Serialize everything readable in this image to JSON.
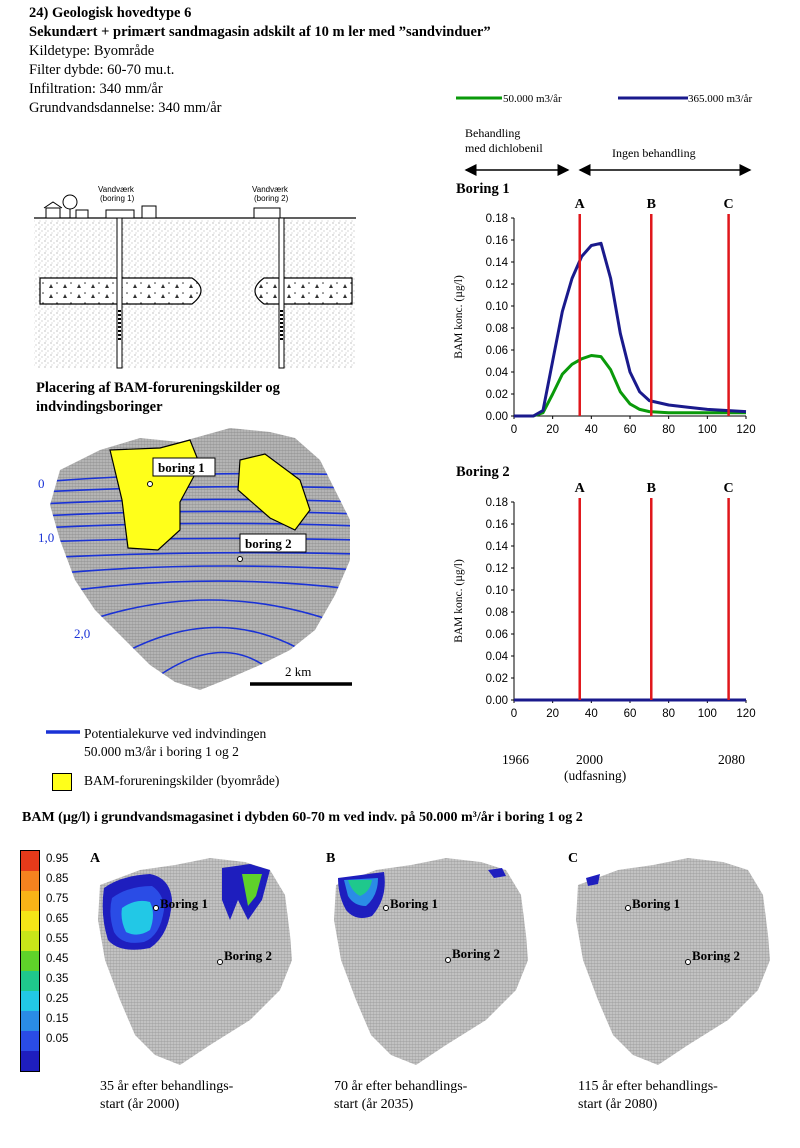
{
  "header": {
    "title": "24) Geologisk hovedtype 6",
    "subtitle": "Sekundært + primært sandmagasin adskilt af 10 m ler med ”sandvinduer”",
    "lines": [
      "Kildetype: Byområde",
      "Filter dybde: 60-70 mu.t.",
      "Infiltration: 340 mm/år",
      "Grundvandsdannelse: 340 mm/år"
    ]
  },
  "legend_top": {
    "series1": "50.000 m3/år",
    "series2": "365.000 m3/år",
    "color1": "#0a9a0a",
    "color2": "#1a1a8c"
  },
  "phases": {
    "treatment": "Behandling med dichlobenil",
    "treatment_line1": "Behandling",
    "treatment_line2": "med dichlobenil",
    "no_treatment": "Ingen behandling"
  },
  "cross_section": {
    "waterworks1_l1": "Vandværk",
    "waterworks1_l2": "(boring 1)",
    "waterworks2_l1": "Vandværk",
    "waterworks2_l2": "(boring 2)"
  },
  "map": {
    "title_l1": "Placering af BAM-forureningskilder og",
    "title_l2": "indvindingsboringer",
    "contour_labels": [
      "0",
      "1,0",
      "2,0"
    ],
    "boring1": "boring 1",
    "boring2": "boring 2",
    "scale": "2 km",
    "legend_line_l1": "Potentialekurve ved indvindingen",
    "legend_line_l2": "50.000 m3/år i boring 1 og 2",
    "legend_box": "BAM-forureningskilder (byområde)"
  },
  "chart_data": [
    {
      "type": "line",
      "title": "Boring 1",
      "xlabel": "",
      "ylabel": "BAM konc. (µg/l)",
      "xlim": [
        0,
        120
      ],
      "ylim": [
        0,
        0.18
      ],
      "xticks": [
        0,
        20,
        40,
        60,
        80,
        100,
        120
      ],
      "yticks": [
        0.0,
        0.02,
        0.04,
        0.06,
        0.08,
        0.1,
        0.12,
        0.14,
        0.16,
        0.18
      ],
      "vlines": [
        {
          "label": "A",
          "x": 34
        },
        {
          "label": "B",
          "x": 71
        },
        {
          "label": "C",
          "x": 111
        }
      ],
      "series": [
        {
          "name": "50.000 m3/år",
          "color": "#0a9a0a",
          "x": [
            0,
            10,
            15,
            20,
            25,
            30,
            35,
            40,
            45,
            50,
            55,
            60,
            65,
            70,
            80,
            90,
            100,
            110,
            120
          ],
          "y": [
            0,
            0,
            0.003,
            0.02,
            0.038,
            0.047,
            0.052,
            0.055,
            0.054,
            0.042,
            0.022,
            0.011,
            0.006,
            0.004,
            0.003,
            0.003,
            0.003,
            0.003,
            0.003
          ]
        },
        {
          "name": "365.000 m3/år",
          "color": "#1a1a8c",
          "x": [
            0,
            10,
            15,
            20,
            25,
            30,
            35,
            40,
            45,
            50,
            55,
            60,
            65,
            70,
            80,
            90,
            100,
            110,
            120
          ],
          "y": [
            0,
            0,
            0.005,
            0.05,
            0.095,
            0.125,
            0.145,
            0.155,
            0.157,
            0.125,
            0.075,
            0.04,
            0.022,
            0.014,
            0.01,
            0.008,
            0.006,
            0.005,
            0.004
          ]
        }
      ]
    },
    {
      "type": "line",
      "title": "Boring 2",
      "xlabel": "",
      "ylabel": "BAM konc. (µg/l)",
      "xlim": [
        0,
        120
      ],
      "ylim": [
        0,
        0.18
      ],
      "xticks": [
        0,
        20,
        40,
        60,
        80,
        100,
        120
      ],
      "yticks": [
        0.0,
        0.02,
        0.04,
        0.06,
        0.08,
        0.1,
        0.12,
        0.14,
        0.16,
        0.18
      ],
      "vlines": [
        {
          "label": "A",
          "x": 34
        },
        {
          "label": "B",
          "x": 71
        },
        {
          "label": "C",
          "x": 111
        }
      ],
      "series": [
        {
          "name": "50.000 m3/år",
          "color": "#0a9a0a",
          "x": [
            0,
            120
          ],
          "y": [
            0,
            0
          ]
        },
        {
          "name": "365.000 m3/år",
          "color": "#1a1a8c",
          "x": [
            0,
            120
          ],
          "y": [
            0,
            0
          ]
        }
      ],
      "year_labels": {
        "y1966": "1966",
        "y2000": "2000",
        "udfasning": "(udfasning)",
        "y2080": "2080"
      }
    }
  ],
  "bottom": {
    "title": "BAM (µg/l) i grundvandsmagasinet i dybden 60-70 m ved indv. på 50.000 m³/år i boring 1 og 2",
    "colorbar_ticks": [
      "0.95",
      "0.85",
      "0.75",
      "0.65",
      "0.55",
      "0.45",
      "0.35",
      "0.25",
      "0.15",
      "0.05"
    ],
    "colorbar_colors": [
      "#e63a1a",
      "#f5821f",
      "#f9b317",
      "#f5e617",
      "#c8e619",
      "#5fd22a",
      "#1fc88c",
      "#22c8e6",
      "#2a8ce6",
      "#2a4ce6",
      "#1e1ebe"
    ],
    "panels": [
      {
        "letter": "A",
        "b1": "Boring 1",
        "b2": "Boring 2",
        "cap1": "35 år efter behandlings-",
        "cap2": "start (år 2000)"
      },
      {
        "letter": "B",
        "b1": "Boring 1",
        "b2": "Boring 2",
        "cap1": "70 år efter behandlings-",
        "cap2": "start (år 2035)"
      },
      {
        "letter": "C",
        "b1": "Boring 1",
        "b2": "Boring 2",
        "cap1": "115 år efter behandlings-",
        "cap2": "start (år 2080)"
      }
    ]
  }
}
